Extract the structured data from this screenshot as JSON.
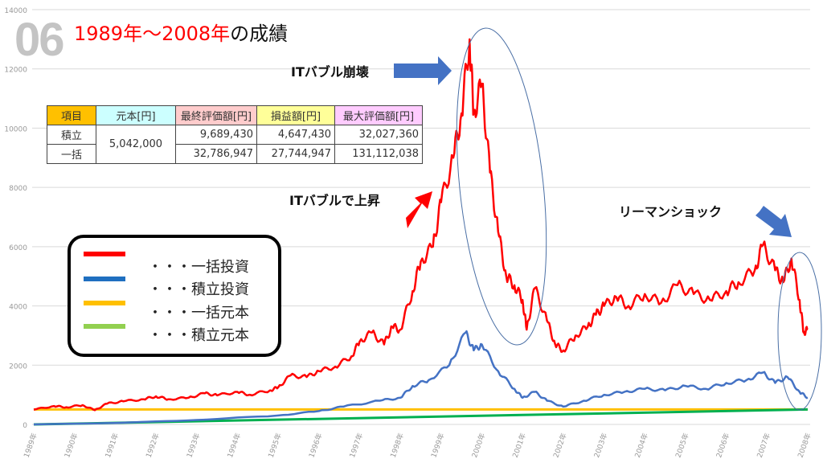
{
  "header": {
    "number": "06",
    "title_red": "1989年～2008年",
    "title_black": "の成績"
  },
  "annotations": {
    "crash": "ITバブル崩壊",
    "rise": "ITバブルで上昇",
    "lehman": "リーマンショック"
  },
  "table": {
    "headers": [
      "項目",
      "元本[円]",
      "最終評価額[円]",
      "損益額[円]",
      "最大評価額[円]"
    ],
    "principal": "5,042,000",
    "rows": [
      {
        "label": "積立",
        "final": "9,689,430",
        "profit": "4,647,430",
        "max": "32,027,360"
      },
      {
        "label": "一括",
        "final": "32,786,947",
        "profit": "27,744,947",
        "max": "131,112,038"
      }
    ]
  },
  "legend": [
    {
      "label": "・・・一括投資",
      "color": "#ff0000"
    },
    {
      "label": "・・・積立投資",
      "color": "#1f6fc0"
    },
    {
      "label": "・・・一括元本",
      "color": "#ffc000"
    },
    {
      "label": "・・・積立元本",
      "color": "#92d050"
    }
  ],
  "chart_data": {
    "type": "line",
    "title": "1989年～2008年の成績",
    "ylim": [
      0,
      14000
    ],
    "yticks": [
      "0",
      "2000",
      "4000",
      "6000",
      "8000",
      "10000",
      "12000",
      "14000"
    ],
    "xticks": [
      "1989年",
      "1990年",
      "1991年",
      "1992年",
      "1993年",
      "1994年",
      "1995年",
      "1996年",
      "1997年",
      "1998年",
      "1999年",
      "2000年",
      "2001年",
      "2002年",
      "2003年",
      "2004年",
      "2005年",
      "2006年",
      "2007年",
      "2008年"
    ],
    "grid": true,
    "series": [
      {
        "name": "一括投資",
        "color": "#ff0000",
        "points": [
          [
            1989.0,
            500
          ],
          [
            1989.5,
            620
          ],
          [
            1989.8,
            580
          ],
          [
            1990.2,
            650
          ],
          [
            1990.5,
            480
          ],
          [
            1990.8,
            700
          ],
          [
            1991.2,
            780
          ],
          [
            1991.7,
            850
          ],
          [
            1992.0,
            950
          ],
          [
            1992.3,
            850
          ],
          [
            1992.8,
            900
          ],
          [
            1993.2,
            1050
          ],
          [
            1993.5,
            980
          ],
          [
            1994.0,
            1100
          ],
          [
            1994.3,
            1000
          ],
          [
            1994.8,
            1150
          ],
          [
            1995.0,
            1250
          ],
          [
            1995.3,
            1650
          ],
          [
            1995.7,
            1600
          ],
          [
            1996.0,
            1800
          ],
          [
            1996.4,
            1950
          ],
          [
            1996.8,
            2300
          ],
          [
            1997.0,
            2800
          ],
          [
            1997.3,
            3100
          ],
          [
            1997.6,
            2700
          ],
          [
            1997.8,
            3300
          ],
          [
            1998.0,
            3200
          ],
          [
            1998.3,
            4500
          ],
          [
            1998.5,
            5500
          ],
          [
            1998.8,
            6000
          ],
          [
            1999.0,
            7500
          ],
          [
            1999.3,
            9000
          ],
          [
            1999.5,
            10500
          ],
          [
            1999.7,
            13000
          ],
          [
            1999.8,
            10500
          ],
          [
            2000.0,
            11500
          ],
          [
            2000.2,
            8500
          ],
          [
            2000.4,
            6500
          ],
          [
            2000.6,
            5000
          ],
          [
            2000.8,
            4700
          ],
          [
            2001.0,
            4200
          ],
          [
            2001.1,
            3200
          ],
          [
            2001.3,
            4600
          ],
          [
            2001.6,
            3500
          ],
          [
            2001.8,
            2700
          ],
          [
            2002.0,
            2500
          ],
          [
            2002.3,
            3000
          ],
          [
            2002.6,
            3300
          ],
          [
            2002.8,
            3700
          ],
          [
            2003.0,
            4000
          ],
          [
            2003.3,
            4300
          ],
          [
            2003.6,
            4000
          ],
          [
            2004.0,
            4400
          ],
          [
            2004.4,
            4100
          ],
          [
            2004.8,
            4700
          ],
          [
            2005.2,
            4400
          ],
          [
            2005.6,
            4200
          ],
          [
            2006.0,
            4500
          ],
          [
            2006.3,
            4800
          ],
          [
            2006.7,
            5200
          ],
          [
            2006.9,
            6050
          ],
          [
            2007.2,
            5200
          ],
          [
            2007.4,
            4800
          ],
          [
            2007.6,
            5600
          ],
          [
            2007.8,
            4200
          ],
          [
            2007.9,
            3100
          ],
          [
            2008.0,
            3200
          ]
        ]
      },
      {
        "name": "積立投資",
        "color": "#4472c4",
        "points": [
          [
            1989.0,
            0
          ],
          [
            1991.0,
            50
          ],
          [
            1993.0,
            150
          ],
          [
            1995.0,
            300
          ],
          [
            1996.0,
            450
          ],
          [
            1996.6,
            600
          ],
          [
            1997.5,
            800
          ],
          [
            1998.0,
            900
          ],
          [
            1998.3,
            1300
          ],
          [
            1998.7,
            1500
          ],
          [
            1999.2,
            2000
          ],
          [
            1999.6,
            3100
          ],
          [
            1999.8,
            2500
          ],
          [
            2000.0,
            2700
          ],
          [
            2000.4,
            1800
          ],
          [
            2000.8,
            1200
          ],
          [
            2001.0,
            900
          ],
          [
            2001.3,
            1100
          ],
          [
            2001.6,
            800
          ],
          [
            2002.0,
            600
          ],
          [
            2002.5,
            800
          ],
          [
            2003.0,
            1000
          ],
          [
            2003.5,
            1100
          ],
          [
            2004.0,
            1200
          ],
          [
            2004.5,
            1150
          ],
          [
            2005.0,
            1300
          ],
          [
            2005.5,
            1200
          ],
          [
            2006.0,
            1400
          ],
          [
            2006.5,
            1500
          ],
          [
            2006.9,
            1750
          ],
          [
            2007.2,
            1400
          ],
          [
            2007.5,
            1600
          ],
          [
            2007.8,
            1100
          ],
          [
            2008.0,
            900
          ]
        ]
      },
      {
        "name": "一括元本",
        "color": "#ffc000",
        "points": [
          [
            1989.0,
            504
          ],
          [
            2008.0,
            504
          ]
        ]
      },
      {
        "name": "積立元本",
        "color": "#00b050",
        "points": [
          [
            1989.0,
            0
          ],
          [
            2008.0,
            504
          ]
        ]
      }
    ]
  }
}
